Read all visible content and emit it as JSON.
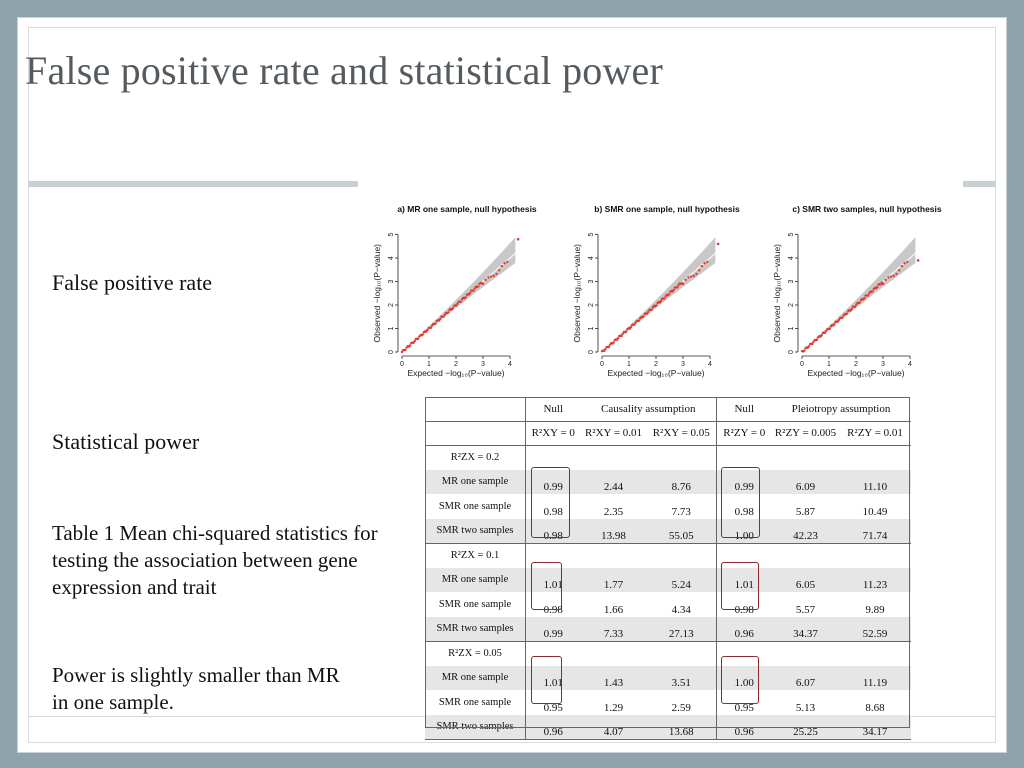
{
  "title": "False positive rate and statistical power",
  "labels": {
    "false_positive_rate": "False positive rate",
    "statistical_power": "Statistical power",
    "caption": "Table 1 Mean chi-squared statistics for testing the association between gene expression and trait",
    "note": "Power is slightly smaller than MR in one sample."
  },
  "plots": [
    {
      "title": "a) MR one sample, null hypothesis"
    },
    {
      "title": "b) SMR one sample, null hypothesis"
    },
    {
      "title": "c) SMR two samples, null hypothesis"
    }
  ],
  "plot_axes": {
    "ylabel": "Observed −log₁₀(P−value)",
    "xlabel": "Expected −log₁₀(P−value)",
    "xticks": [
      "0",
      "1",
      "2",
      "3",
      "4"
    ],
    "yticks": [
      "0",
      "1",
      "2",
      "3",
      "4",
      "5"
    ]
  },
  "table": {
    "header1": [
      "Null",
      "Causality assumption",
      "Null",
      "Pleiotropy assumption"
    ],
    "header2": [
      "R²XY = 0",
      "R²XY = 0.01",
      "R²XY = 0.05",
      "R²ZY = 0",
      "R²ZY = 0.005",
      "R²ZY = 0.01"
    ],
    "groups": [
      {
        "label": "R²ZX = 0.2",
        "rows": [
          {
            "method": "MR one sample",
            "values": [
              "0.99",
              "2.44",
              "8.76",
              "0.99",
              "6.09",
              "11.10"
            ]
          },
          {
            "method": "SMR one sample",
            "values": [
              "0.98",
              "2.35",
              "7.73",
              "0.98",
              "5.87",
              "10.49"
            ]
          },
          {
            "method": "SMR two samples",
            "values": [
              "0.98",
              "13.98",
              "55.05",
              "1.00",
              "42.23",
              "71.74"
            ]
          }
        ]
      },
      {
        "label": "R²ZX = 0.1",
        "rows": [
          {
            "method": "MR one sample",
            "values": [
              "1.01",
              "1.77",
              "5.24",
              "1.01",
              "6.05",
              "11.23"
            ]
          },
          {
            "method": "SMR one sample",
            "values": [
              "0.98",
              "1.66",
              "4.34",
              "0.98",
              "5.57",
              "9.89"
            ]
          },
          {
            "method": "SMR two samples",
            "values": [
              "0.99",
              "7.33",
              "27.13",
              "0.96",
              "34.37",
              "52.59"
            ]
          }
        ]
      },
      {
        "label": "R²ZX = 0.05",
        "rows": [
          {
            "method": "MR one sample",
            "values": [
              "1.01",
              "1.43",
              "3.51",
              "1.00",
              "6.07",
              "11.19"
            ]
          },
          {
            "method": "SMR one sample",
            "values": [
              "0.95",
              "1.29",
              "2.59",
              "0.95",
              "5.13",
              "8.68"
            ]
          },
          {
            "method": "SMR two samples",
            "values": [
              "0.96",
              "4.07",
              "13.68",
              "0.96",
              "25.25",
              "34.17"
            ]
          }
        ]
      }
    ]
  },
  "colors": {
    "points": "#e03a2e",
    "band": "#c8c8c8",
    "highlight": "#8b2a2a"
  }
}
